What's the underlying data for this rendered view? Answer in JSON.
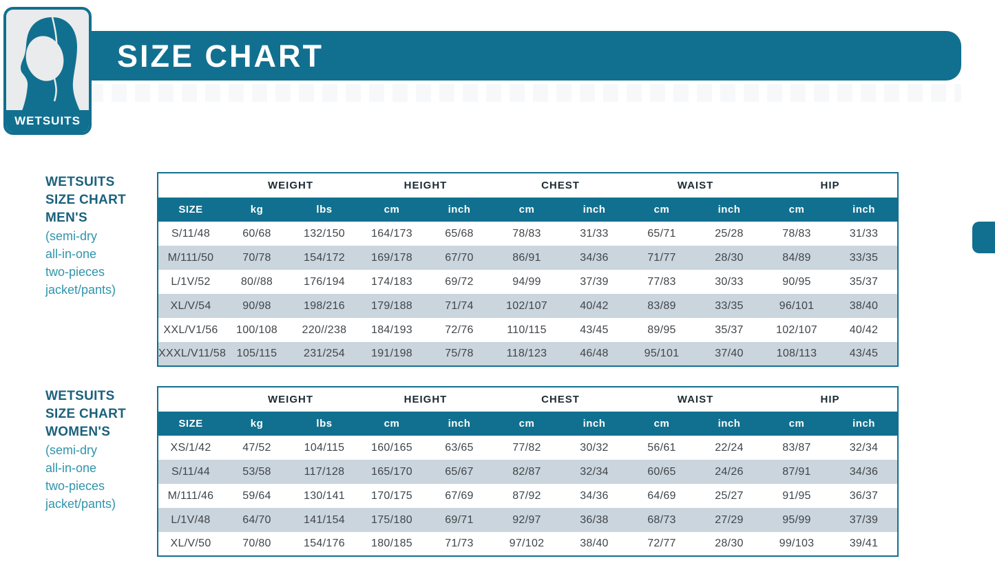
{
  "banner": {
    "title": "SIZE CHART"
  },
  "logo": {
    "badge": "WETSUITS",
    "icon": "wetsuit-hood-icon"
  },
  "colors": {
    "teal": "#11708f",
    "row_alt": "#cad5dd",
    "label_dark": "#1b617c",
    "label_light": "#2e95ab",
    "group_text": "#1c2b33",
    "cell_text": "#414549"
  },
  "tables": [
    {
      "id": "mens",
      "label_bold": [
        "WETSUITS",
        "SIZE CHART",
        "MEN'S"
      ],
      "label_light": [
        "(semi-dry",
        "all-in-one",
        "two-pieces",
        "jacket/pants)"
      ],
      "group_headers": [
        "WEIGHT",
        "HEIGHT",
        "CHEST",
        "WAIST",
        "HIP"
      ],
      "columns": [
        "SIZE",
        "kg",
        "lbs",
        "cm",
        "inch",
        "cm",
        "inch",
        "cm",
        "inch",
        "cm",
        "inch"
      ],
      "rows": [
        [
          "S/11/48",
          "60/68",
          "132/150",
          "164/173",
          "65/68",
          "78/83",
          "31/33",
          "65/71",
          "25/28",
          "78/83",
          "31/33"
        ],
        [
          "M/111/50",
          "70/78",
          "154/172",
          "169/178",
          "67/70",
          "86/91",
          "34/36",
          "71/77",
          "28/30",
          "84/89",
          "33/35"
        ],
        [
          "L/1V/52",
          "80//88",
          "176/194",
          "174/183",
          "69/72",
          "94/99",
          "37/39",
          "77/83",
          "30/33",
          "90/95",
          "35/37"
        ],
        [
          "XL/V/54",
          "90/98",
          "198/216",
          "179/188",
          "71/74",
          "102/107",
          "40/42",
          "83/89",
          "33/35",
          "96/101",
          "38/40"
        ],
        [
          "XXL/V1/56",
          "100/108",
          "220//238",
          "184/193",
          "72/76",
          "110/115",
          "43/45",
          "89/95",
          "35/37",
          "102/107",
          "40/42"
        ],
        [
          "XXXL/V11/58",
          "105/115",
          "231/254",
          "191/198",
          "75/78",
          "118/123",
          "46/48",
          "95/101",
          "37/40",
          "108/113",
          "43/45"
        ]
      ]
    },
    {
      "id": "womens",
      "label_bold": [
        "WETSUITS",
        "SIZE CHART",
        "WOMEN'S"
      ],
      "label_light": [
        "(semi-dry",
        "all-in-one",
        "two-pieces",
        "jacket/pants)"
      ],
      "group_headers": [
        "WEIGHT",
        "HEIGHT",
        "CHEST",
        "WAIST",
        "HIP"
      ],
      "columns": [
        "SIZE",
        "kg",
        "lbs",
        "cm",
        "inch",
        "cm",
        "inch",
        "cm",
        "inch",
        "cm",
        "inch"
      ],
      "rows": [
        [
          "XS/1/42",
          "47/52",
          "104/115",
          "160/165",
          "63/65",
          "77/82",
          "30/32",
          "56/61",
          "22/24",
          "83/87",
          "32/34"
        ],
        [
          "S/11/44",
          "53/58",
          "117/128",
          "165/170",
          "65/67",
          "82/87",
          "32/34",
          "60/65",
          "24/26",
          "87/91",
          "34/36"
        ],
        [
          "M/111/46",
          "59/64",
          "130/141",
          "170/175",
          "67/69",
          "87/92",
          "34/36",
          "64/69",
          "25/27",
          "91/95",
          "36/37"
        ],
        [
          "L/1V/48",
          "64/70",
          "141/154",
          "175/180",
          "69/71",
          "92/97",
          "36/38",
          "68/73",
          "27/29",
          "95/99",
          "37/39"
        ],
        [
          "XL/V/50",
          "70/80",
          "154/176",
          "180/185",
          "71/73",
          "97/102",
          "38/40",
          "72/77",
          "28/30",
          "99/103",
          "39/41"
        ]
      ]
    }
  ],
  "layout": {
    "section_tops": [
      "250px",
      "561px"
    ]
  }
}
